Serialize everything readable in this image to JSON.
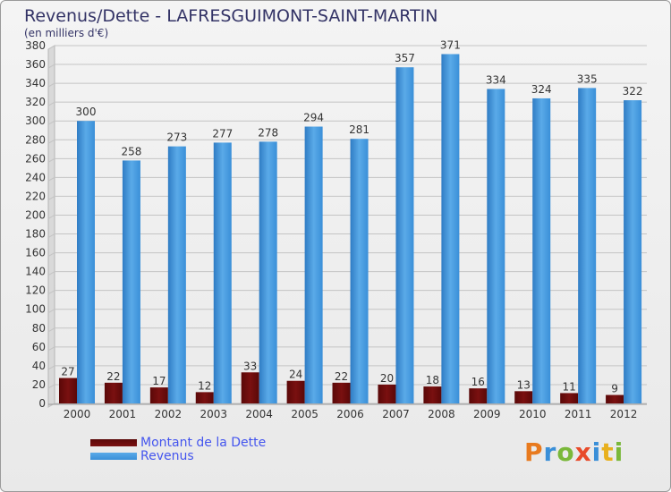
{
  "chart_data": {
    "type": "bar",
    "title": "Revenus/Dette - LAFRESGUIMONT-SAINT-MARTIN",
    "subtitle": "(en milliers d'€)",
    "categories": [
      "2000",
      "2001",
      "2002",
      "2003",
      "2004",
      "2005",
      "2006",
      "2007",
      "2008",
      "2009",
      "2010",
      "2011",
      "2012"
    ],
    "series": [
      {
        "name": "Montant de la Dette",
        "color": "#7a1010",
        "values": [
          27,
          22,
          17,
          12,
          33,
          24,
          22,
          20,
          18,
          16,
          13,
          11,
          9
        ]
      },
      {
        "name": "Revenus",
        "color": "#3a8fd8",
        "values": [
          300,
          258,
          273,
          277,
          278,
          294,
          281,
          357,
          371,
          334,
          324,
          335,
          322
        ]
      }
    ],
    "ylim": [
      0,
      380
    ],
    "yticks": [
      0,
      20,
      40,
      60,
      80,
      100,
      120,
      140,
      160,
      180,
      200,
      220,
      240,
      260,
      280,
      300,
      320,
      340,
      360,
      380
    ],
    "grid": true,
    "legend": "bottom-left"
  },
  "logo": {
    "text": "Proxiti",
    "colors": [
      "#e87a1e",
      "#3a8fd8",
      "#7ab83a",
      "#e84b2a",
      "#3a8fd8",
      "#e8b01e",
      "#7ab83a"
    ]
  }
}
